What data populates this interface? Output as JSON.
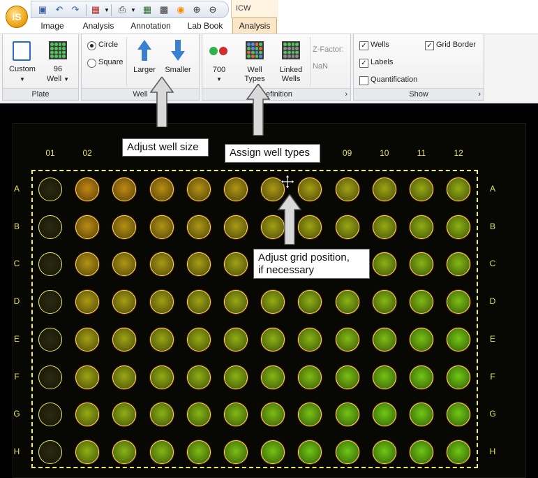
{
  "app": {
    "logo_text": "iS",
    "context_tab": "ICW"
  },
  "quick_access": {
    "icons": [
      "save-icon",
      "undo-icon",
      "redo-icon",
      "layout-icon",
      "print-icon",
      "export-icon",
      "qr-icon",
      "rss-icon",
      "zoom-in-icon",
      "zoom-out-icon"
    ]
  },
  "tabs": [
    {
      "label": "Image"
    },
    {
      "label": "Analysis"
    },
    {
      "label": "Annotation"
    },
    {
      "label": "Lab Book"
    },
    {
      "label": "Analysis",
      "active": true
    }
  ],
  "ribbon": {
    "plate": {
      "custom_label": "Custom",
      "well_count": "96",
      "well_label": "Well",
      "group_label": "Plate"
    },
    "well": {
      "circle_label": "Circle",
      "square_label": "Square",
      "shape_selected": "Circle",
      "larger_label": "Larger",
      "smaller_label": "Smaller",
      "group_label": "Well"
    },
    "definition": {
      "channel_label": "700",
      "well_types_line1": "Well",
      "well_types_line2": "Types",
      "linked_line1": "Linked",
      "linked_line2": "Wells",
      "zfactor_label": "Z-Factor:",
      "zfactor_value": "NaN",
      "group_label": "Definition"
    },
    "show": {
      "wells_label": "Wells",
      "wells_checked": true,
      "labels_label": "Labels",
      "labels_checked": true,
      "quant_label": "Quantification",
      "quant_checked": false,
      "grid_border_label": "Grid Border",
      "grid_border_checked": true,
      "group_label": "Show"
    }
  },
  "plate": {
    "columns": [
      "01",
      "02",
      "03",
      "04",
      "05",
      "06",
      "07",
      "08",
      "09",
      "10",
      "11",
      "12"
    ],
    "rows": [
      "A",
      "B",
      "C",
      "D",
      "E",
      "F",
      "G",
      "H"
    ]
  },
  "callouts": {
    "well_size": "Adjust well size",
    "well_types": "Assign well types",
    "grid_position_line1": "Adjust grid position,",
    "grid_position_line2": "if necessary"
  },
  "colors": {
    "accent_orange": "#f0a818",
    "ribbon_active_tab": "#fbe6c7",
    "label_yellow": "#e6e15a",
    "well_green": "#74c81c",
    "well_orange": "#c88a1c"
  }
}
